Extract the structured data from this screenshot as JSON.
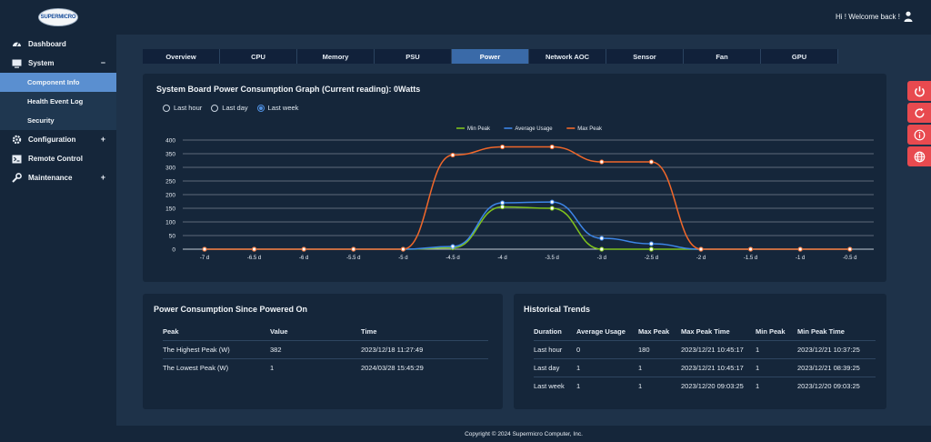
{
  "header": {
    "logo_text": "SUPERMICRO",
    "welcome": "Hi ! Welcome back !"
  },
  "sidebar": {
    "items": [
      {
        "label": "Dashboard",
        "icon": "dashboard-icon"
      },
      {
        "label": "System",
        "icon": "monitor-icon",
        "expander": "−"
      },
      {
        "label": "Component Info",
        "sub": true,
        "active": true
      },
      {
        "label": "Health Event Log",
        "sub": true
      },
      {
        "label": "Security",
        "sub": true
      },
      {
        "label": "Configuration",
        "icon": "gear-icon",
        "expander": "+"
      },
      {
        "label": "Remote Control",
        "icon": "terminal-icon"
      },
      {
        "label": "Maintenance",
        "icon": "wrench-icon",
        "expander": "+"
      }
    ]
  },
  "tabs": [
    "Overview",
    "CPU",
    "Memory",
    "PSU",
    "Power",
    "Network AOC",
    "Sensor",
    "Fan",
    "GPU"
  ],
  "active_tab": "Power",
  "graph_panel": {
    "title": "System Board Power Consumption Graph (Current reading): 0Watts",
    "ranges": [
      "Last hour",
      "Last day",
      "Last week"
    ],
    "selected_range": "Last week"
  },
  "chart_data": {
    "type": "line",
    "x": [
      "-7 d",
      "-6.5 d",
      "-6 d",
      "-5.5 d",
      "-5 d",
      "-4.5 d",
      "-4 d",
      "-3.5 d",
      "-3 d",
      "-2.5 d",
      "-2 d",
      "-1.5 d",
      "-1 d",
      "-0.5 d"
    ],
    "ylim": [
      0,
      400
    ],
    "yticks": [
      0,
      50,
      100,
      150,
      200,
      250,
      300,
      350,
      400
    ],
    "grid": true,
    "legend_position": "top-center",
    "series": [
      {
        "name": "Min Peak",
        "color": "#7fc21d",
        "values": [
          0,
          0,
          0,
          0,
          0,
          5,
          155,
          150,
          0,
          0,
          0,
          0,
          0,
          0
        ]
      },
      {
        "name": "Average Usage",
        "color": "#3d86e8",
        "values": [
          0,
          0,
          0,
          0,
          0,
          10,
          170,
          173,
          40,
          20,
          0,
          0,
          0,
          0
        ]
      },
      {
        "name": "Max Peak",
        "color": "#f0672a",
        "values": [
          0,
          0,
          0,
          0,
          0,
          345,
          375,
          375,
          320,
          320,
          0,
          0,
          0,
          0
        ]
      }
    ]
  },
  "consumption_panel": {
    "title": "Power Consumption Since Powered On",
    "headers": [
      "Peak",
      "Value",
      "Time"
    ],
    "rows": [
      [
        "The Highest Peak (W)",
        "382",
        "2023/12/18 11:27:49"
      ],
      [
        "The Lowest Peak (W)",
        "1",
        "2024/03/28 15:45:29"
      ]
    ]
  },
  "trends_panel": {
    "title": "Historical Trends",
    "headers": [
      "Duration",
      "Average Usage",
      "Max Peak",
      "Max Peak Time",
      "Min Peak",
      "Min Peak Time"
    ],
    "rows": [
      [
        "Last hour",
        "0",
        "180",
        "2023/12/21 10:45:17",
        "1",
        "2023/12/21 10:37:25"
      ],
      [
        "Last day",
        "1",
        "1",
        "2023/12/21 10:45:17",
        "1",
        "2023/12/21 08:39:25"
      ],
      [
        "Last week",
        "1",
        "1",
        "2023/12/20 09:03:25",
        "1",
        "2023/12/20 09:03:25"
      ]
    ]
  },
  "side_actions": [
    "power-icon",
    "refresh-icon",
    "info-icon",
    "globe-icon"
  ],
  "footer": "Copyright © 2024 Supermicro Computer, Inc."
}
